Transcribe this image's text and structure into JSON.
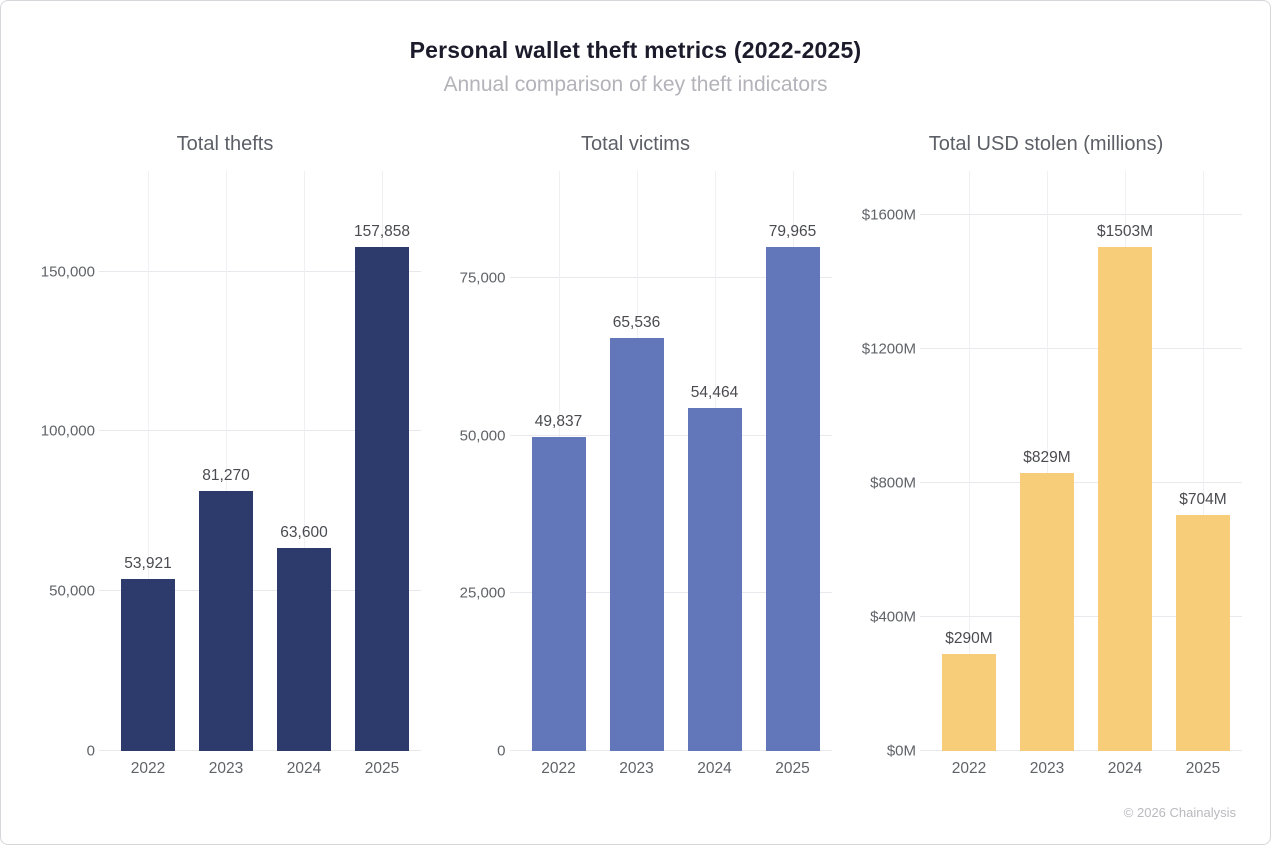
{
  "header": {
    "title": "Personal wallet theft metrics (2022-2025)",
    "subtitle": "Annual comparison of key theft indicators"
  },
  "footer": {
    "copyright": "© 2026 Chainalysis"
  },
  "colors": {
    "thefts_bar": "#2c3b6c",
    "victims_bar": "#6277b9",
    "usd_bar": "#f8cd79",
    "gridline": "#e9e9ed",
    "axis_text": "#5f6368",
    "title_text": "#1b1b2b",
    "subtitle_text": "#b3b3ba"
  },
  "chart_data": [
    {
      "type": "bar",
      "title": "Total thefts",
      "categories": [
        "2022",
        "2023",
        "2024",
        "2025"
      ],
      "values": [
        53921,
        81270,
        63600,
        157858
      ],
      "value_labels": [
        "53,921",
        "81,270",
        "63,600",
        "157,858"
      ],
      "bar_color": "#2c3b6c",
      "xlabel": "",
      "ylabel": "",
      "ylim": [
        0,
        181500
      ],
      "yticks": [
        {
          "value": 0,
          "label": "0"
        },
        {
          "value": 50000,
          "label": "50,000"
        },
        {
          "value": 100000,
          "label": "100,000"
        },
        {
          "value": 150000,
          "label": "150,000"
        }
      ],
      "grid": true,
      "legend": "none"
    },
    {
      "type": "bar",
      "title": "Total victims",
      "categories": [
        "2022",
        "2023",
        "2024",
        "2025"
      ],
      "values": [
        49837,
        65536,
        54464,
        79965
      ],
      "value_labels": [
        "49,837",
        "65,536",
        "54,464",
        "79,965"
      ],
      "bar_color": "#6277b9",
      "xlabel": "",
      "ylabel": "",
      "ylim": [
        0,
        92000
      ],
      "yticks": [
        {
          "value": 0,
          "label": "0"
        },
        {
          "value": 25000,
          "label": "25,000"
        },
        {
          "value": 50000,
          "label": "50,000"
        },
        {
          "value": 75000,
          "label": "75,000"
        }
      ],
      "grid": true,
      "legend": "none"
    },
    {
      "type": "bar",
      "title": "Total USD stolen (millions)",
      "categories": [
        "2022",
        "2023",
        "2024",
        "2025"
      ],
      "values": [
        290,
        829,
        1503,
        704
      ],
      "value_labels": [
        "$290M",
        "$829M",
        "$1503M",
        "$704M"
      ],
      "bar_color": "#f8cd79",
      "xlabel": "",
      "ylabel": "",
      "ylim": [
        0,
        1730
      ],
      "yticks": [
        {
          "value": 0,
          "label": "$0M"
        },
        {
          "value": 400,
          "label": "$400M"
        },
        {
          "value": 800,
          "label": "$800M"
        },
        {
          "value": 1200,
          "label": "$1200M"
        },
        {
          "value": 1600,
          "label": "$1600M"
        }
      ],
      "grid": true,
      "legend": "none"
    }
  ]
}
